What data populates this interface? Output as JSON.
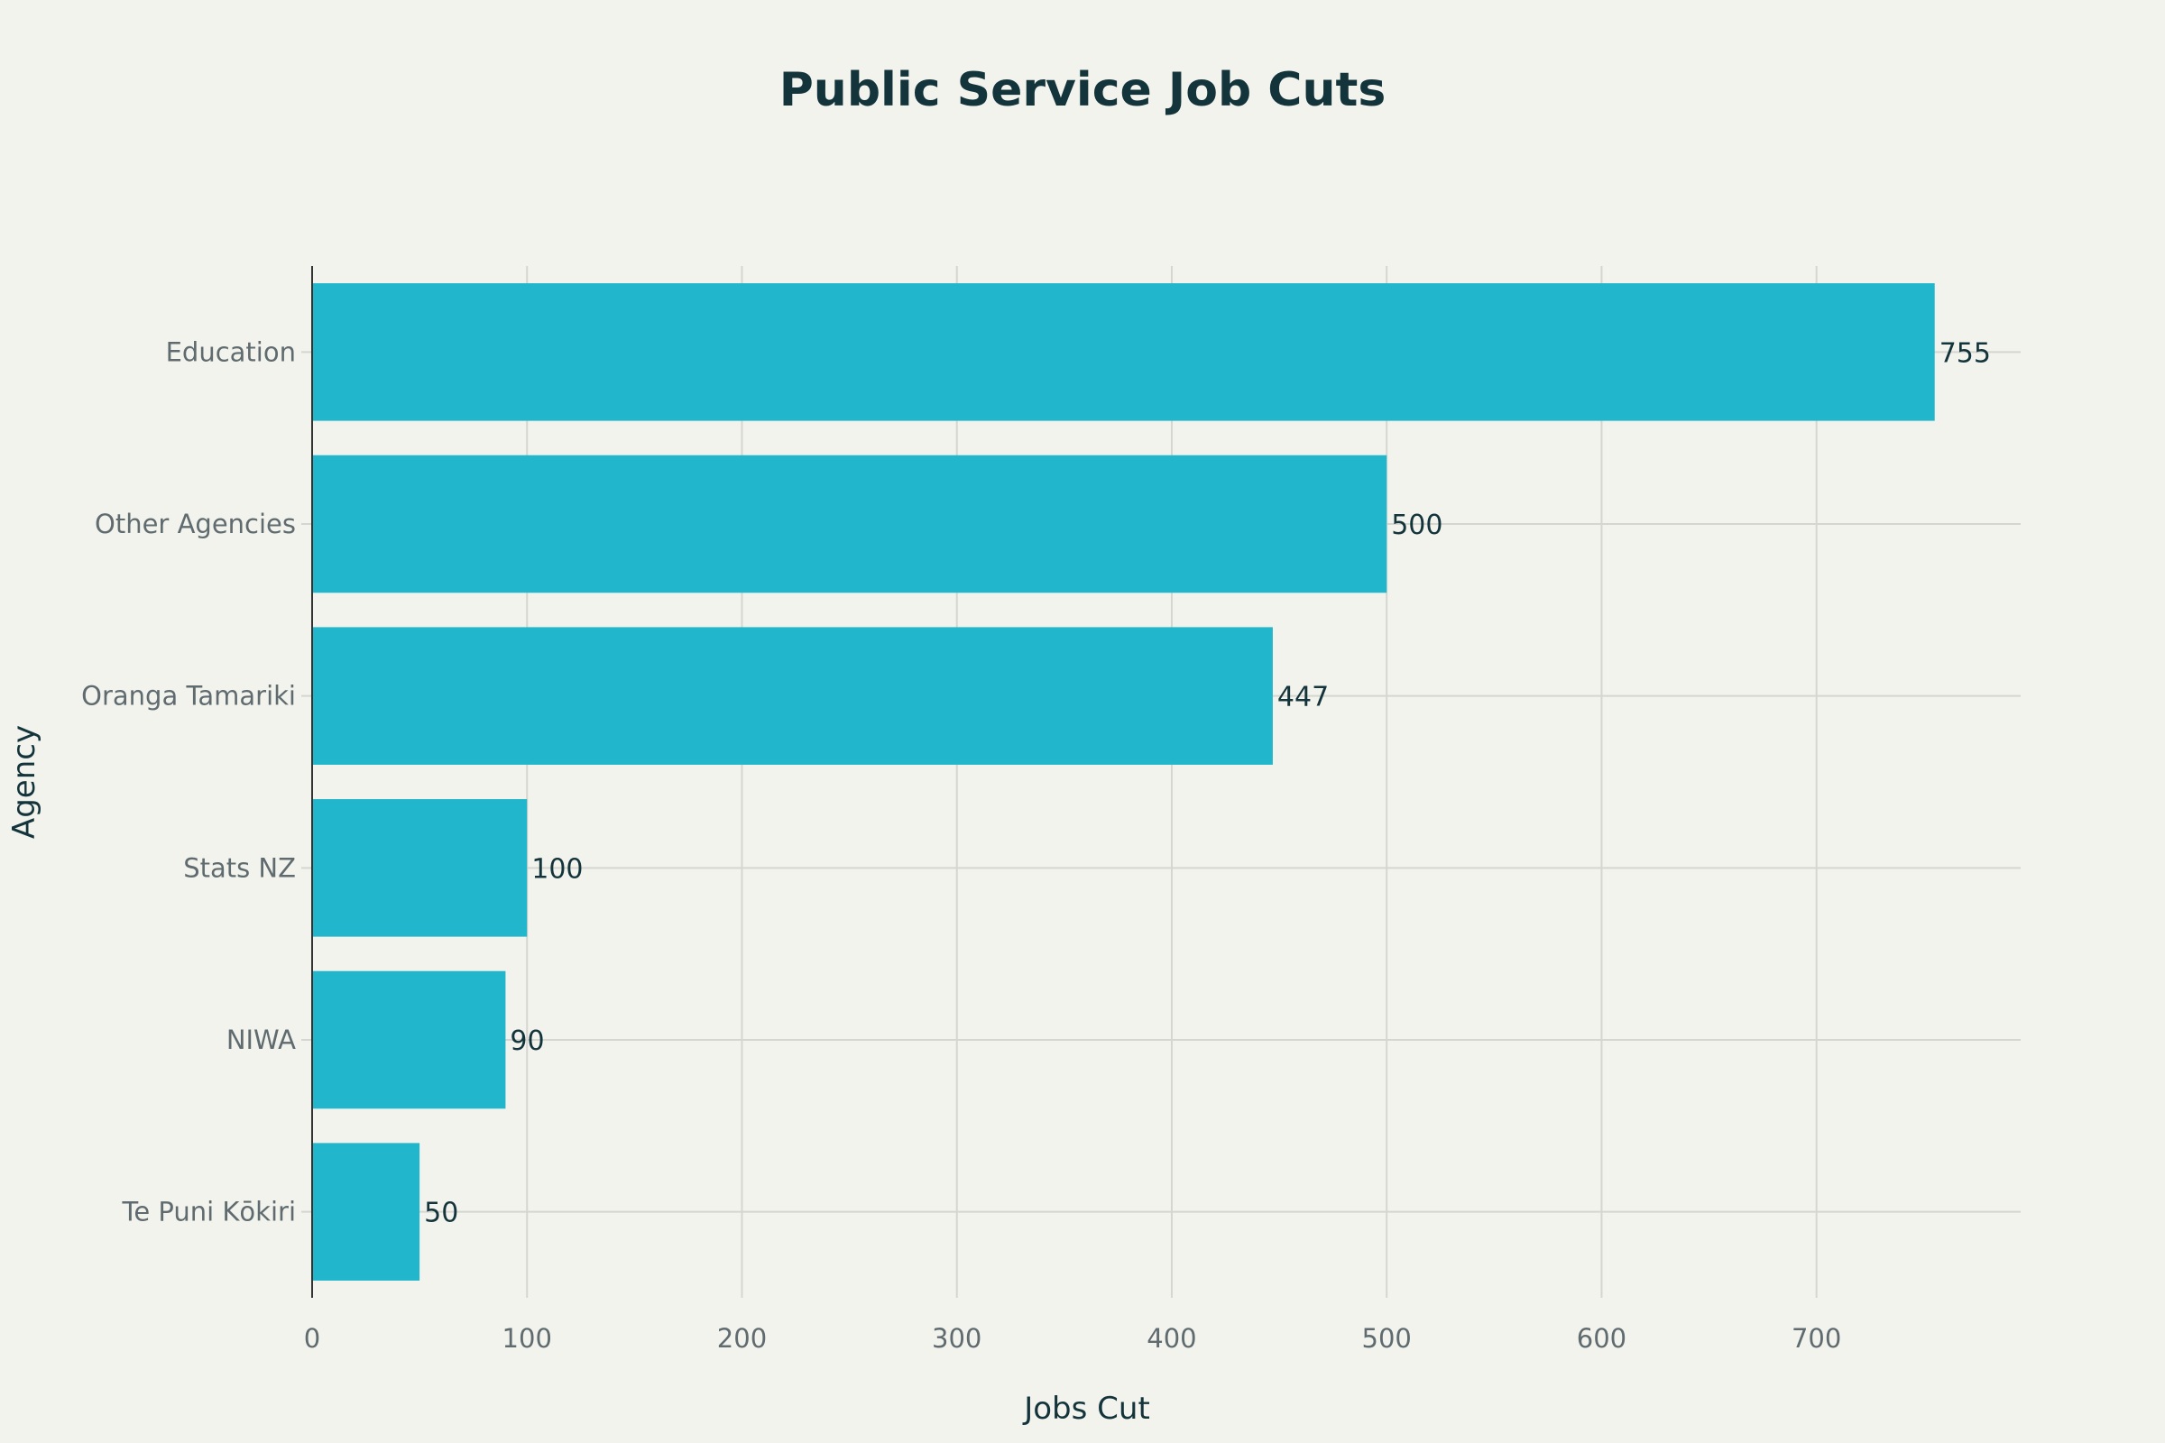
{
  "chart_data": {
    "type": "bar",
    "orientation": "horizontal",
    "title": "Public Service Job Cuts",
    "xlabel": "Jobs Cut",
    "ylabel": "Agency",
    "categories": [
      "Education",
      "Other Agencies",
      "Oranga Tamariki",
      "Stats NZ",
      "NIWA",
      "Te Puni Kōkiri"
    ],
    "values": [
      755,
      500,
      447,
      100,
      90,
      50
    ],
    "data_labels": [
      "755",
      "500",
      "447",
      "100",
      "90",
      "50"
    ],
    "xlim": [
      0,
      795
    ],
    "xticks": [
      0,
      100,
      200,
      300,
      400,
      500,
      600,
      700
    ],
    "grid": true,
    "legend": "none",
    "colors": {
      "bar": "#21b6cb",
      "background": "#f3f3ee",
      "grid": "#d6d6d0",
      "text": "#13343b",
      "tick_text": "#5f6b6e"
    }
  }
}
